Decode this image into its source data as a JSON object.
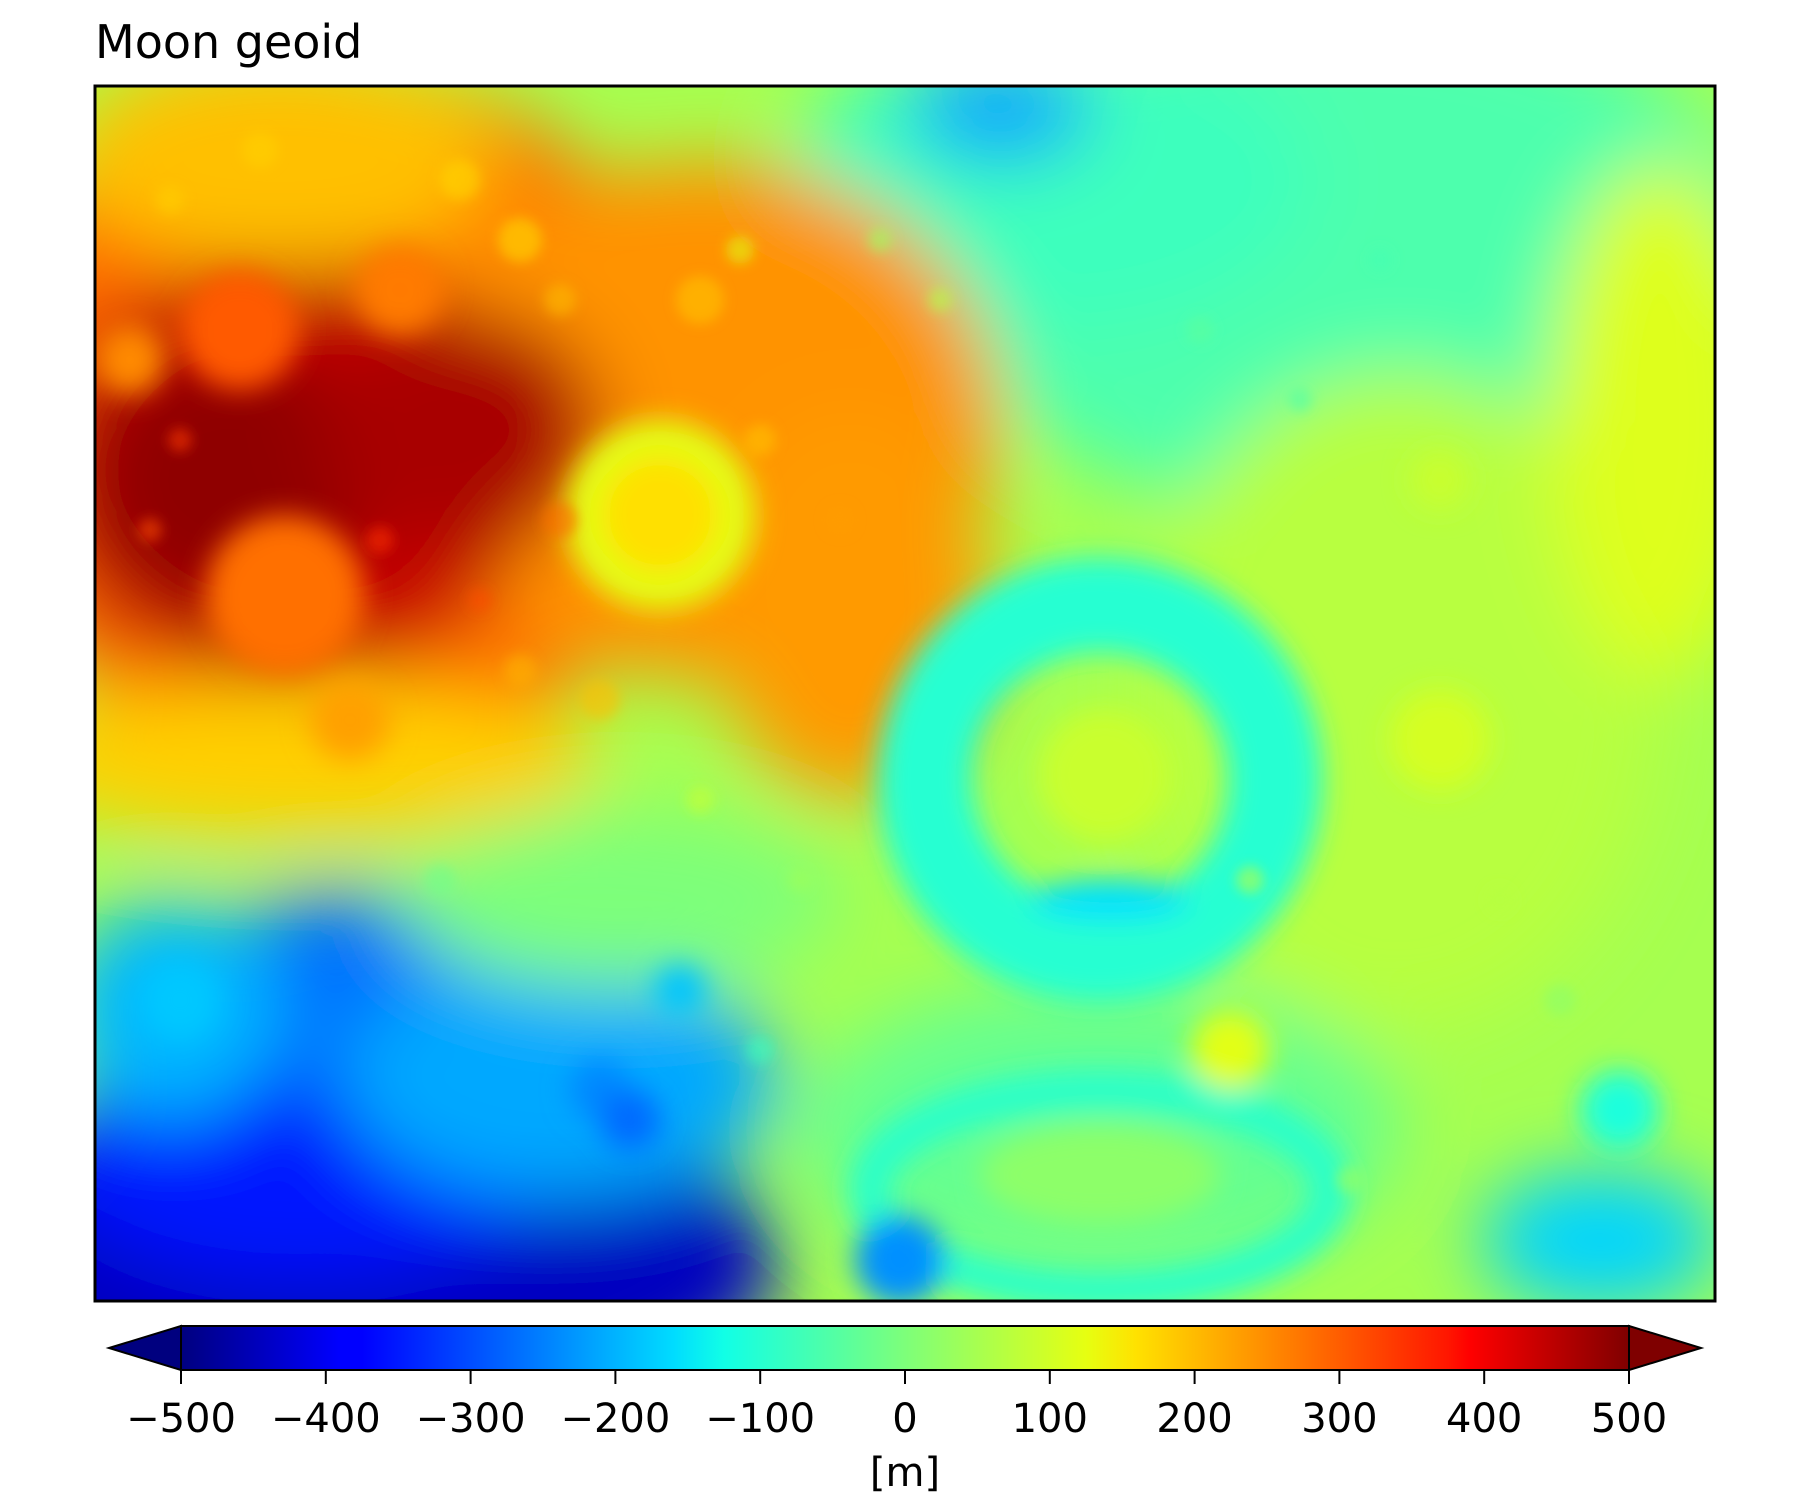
{
  "chart_data": {
    "type": "heatmap",
    "title": "Moon geoid",
    "colormap": "jet",
    "colorbar": {
      "label": "[m]",
      "range": [
        -500,
        500
      ],
      "extend": "both",
      "ticks": [
        -500,
        -400,
        -300,
        -200,
        -100,
        0,
        100,
        200,
        300,
        400,
        500
      ],
      "tick_labels": [
        "−500",
        "−400",
        "−300",
        "−200",
        "−100",
        "0",
        "100",
        "200",
        "300",
        "400",
        "500"
      ],
      "placement": "bottom"
    },
    "axes": {
      "ticks_shown": false,
      "grid": false
    },
    "features": [
      {
        "description": "broad high region upper-left",
        "value": 480
      },
      {
        "description": "ring basin center upper-middle",
        "value": 140
      },
      {
        "description": "circular basin right-center rim",
        "value": -80
      },
      {
        "description": "lowland lower-left",
        "value": -450
      }
    ]
  }
}
